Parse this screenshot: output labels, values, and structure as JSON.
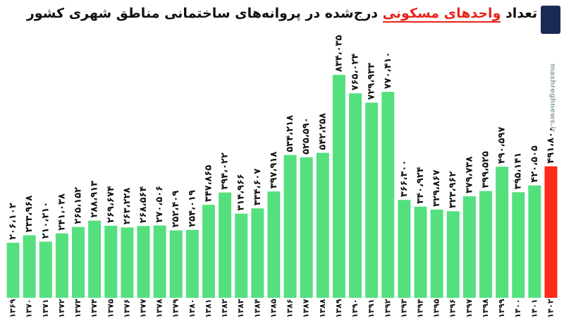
{
  "chart_data": {
    "type": "bar",
    "title_parts": [
      "تعداد",
      "واحدهای مسکونی",
      "درج‌شده در پروانه‌های ساختمانی مناطق شهری کشور"
    ],
    "watermark": "mashreghnews.ir",
    "categories": [
      "۱۳۶۹",
      "۱۳۷۰",
      "۱۳۷۱",
      "۱۳۷۲",
      "۱۳۷۳",
      "۱۳۷۴",
      "۱۳۷۵",
      "۱۳۷۶",
      "۱۳۷۷",
      "۱۳۷۸",
      "۱۳۷۹",
      "۱۳۸۰",
      "۱۳۸۱",
      "۱۳۸۲",
      "۱۳۸۳",
      "۱۳۸۴",
      "۱۳۸۵",
      "۱۳۸۶",
      "۱۳۸۷",
      "۱۳۸۸",
      "۱۳۸۹",
      "۱۳۹۰",
      "۱۳۹۱",
      "۱۳۹۲",
      "۱۳۹۳",
      "۱۳۹۴",
      "۱۳۹۵",
      "۱۳۹۶",
      "۱۳۹۷",
      "۱۳۹۸",
      "۱۳۹۹",
      "۱۴۰۰",
      "۱۴۰۱",
      "۱۴۰۲"
    ],
    "values": [
      206102,
      233968,
      210210,
      241038,
      265152,
      288913,
      269674,
      263228,
      268564,
      270506,
      252409,
      254019,
      347865,
      394022,
      314966,
      334607,
      397918,
      534218,
      525590,
      542258,
      834035,
      765024,
      729933,
      770410,
      366300,
      340924,
      329867,
      323962,
      379738,
      399525,
      490597,
      395141,
      420505,
      491800
    ],
    "value_labels": [
      "۲۰۶،۱۰۲",
      "۲۳۳،۹۶۸",
      "۲۱۰،۲۱۰",
      "۲۴۱،۰۳۸",
      "۲۶۵،۱۵۲",
      "۲۸۸،۹۱۳",
      "۲۶۹،۶۷۴",
      "۲۶۳،۲۲۸",
      "۲۶۸،۵۶۴",
      "۲۷۰،۵۰۶",
      "۲۵۲،۴۰۹",
      "۲۵۴،۰۱۹",
      "۳۴۷،۸۶۵",
      "۳۹۴،۰۲۲",
      "۳۱۴،۹۶۶",
      "۳۳۴،۶۰۷",
      "۳۹۷،۹۱۸",
      "۵۳۴،۲۱۸",
      "۵۲۵،۵۹۰",
      "۵۴۲،۲۵۸",
      "۸۳۴،۰۳۵",
      "۷۶۵،۰۲۴",
      "۷۲۹،۹۳۳",
      "۷۷۰،۴۱۰",
      "۳۶۶،۳۰۰",
      "۳۴۰،۹۲۴",
      "۳۲۹،۸۶۷",
      "۳۲۳،۹۶۲",
      "۳۷۹،۷۳۸",
      "۳۹۹،۵۲۵",
      "۴۹۰،۵۹۷",
      "۳۹۵،۱۴۱",
      "۴۲۰،۵۰۵",
      "۴۹۱،۸۰۰"
    ],
    "colors": [
      "#55e07e",
      "#55e07e",
      "#55e07e",
      "#55e07e",
      "#55e07e",
      "#55e07e",
      "#55e07e",
      "#55e07e",
      "#55e07e",
      "#55e07e",
      "#55e07e",
      "#55e07e",
      "#55e07e",
      "#55e07e",
      "#55e07e",
      "#55e07e",
      "#55e07e",
      "#55e07e",
      "#55e07e",
      "#55e07e",
      "#55e07e",
      "#55e07e",
      "#55e07e",
      "#55e07e",
      "#55e07e",
      "#55e07e",
      "#55e07e",
      "#55e07e",
      "#55e07e",
      "#55e07e",
      "#55e07e",
      "#55e07e",
      "#55e07e",
      "#ff2a1a"
    ],
    "ylim": [
      0,
      850000
    ]
  }
}
